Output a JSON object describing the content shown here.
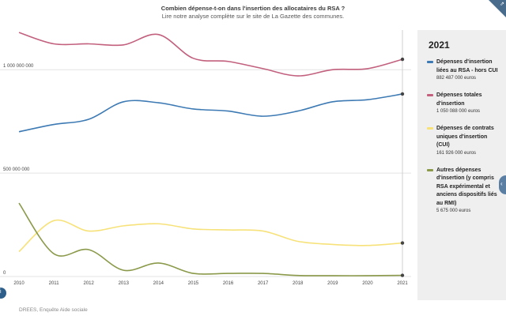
{
  "header": {
    "title": "Combien dépense-t-on dans l'insertion des allocataires du RSA ?",
    "subtitle": "Lire notre analyse complète sur le site de La Gazette des communes."
  },
  "icons": {
    "corner": "share-icon",
    "side_handle": "chevron-left-icon",
    "bottom": "info-icon"
  },
  "legend": {
    "year": "2021",
    "items": [
      {
        "name": "Dépenses d'insertion liées au RSA - hors CUI",
        "value": "882 487 000 euros",
        "color": "#3d7ab4"
      },
      {
        "name": "Dépenses totales d'insertion",
        "value": "1 050 088 000 euros",
        "color": "#c2607e"
      },
      {
        "name": "Dépenses de contrats uniques d'insertion (CUI)",
        "value": "161 926 000 euros",
        "color": "#f7e27a"
      },
      {
        "name": "Autres dépenses d'insertion (y compris RSA expérimental et anciens dispositifs liés au RMI)",
        "value": "5 675 000 euros",
        "color": "#8a9a4a"
      }
    ]
  },
  "source": "DREES, Enquête Aide sociale",
  "chart_data": {
    "type": "line",
    "x": [
      "2010",
      "2011",
      "2012",
      "2013",
      "2014",
      "2015",
      "2016",
      "2017",
      "2018",
      "2019",
      "2020",
      "2021"
    ],
    "y_ticks": [
      {
        "value": 0,
        "label": "0"
      },
      {
        "value": 500000000,
        "label": "500 000 000"
      },
      {
        "value": 1000000000,
        "label": "1 000 000 000"
      }
    ],
    "ylim": [
      0,
      1230000000
    ],
    "grid": true,
    "legend_position": "right",
    "series": [
      {
        "name": "Dépenses d'insertion liées au RSA - hors CUI",
        "color": "#3d7ab4",
        "values": [
          700000000,
          735000000,
          760000000,
          845000000,
          840000000,
          810000000,
          800000000,
          775000000,
          800000000,
          845000000,
          855000000,
          882487000
        ]
      },
      {
        "name": "Dépenses totales d'insertion",
        "color": "#c2607e",
        "values": [
          1180000000,
          1125000000,
          1125000000,
          1120000000,
          1170000000,
          1055000000,
          1040000000,
          1005000000,
          970000000,
          1000000000,
          1005000000,
          1050088000
        ]
      },
      {
        "name": "Dépenses de contrats uniques d'insertion (CUI)",
        "color": "#f7e27a",
        "values": [
          120000000,
          270000000,
          220000000,
          245000000,
          255000000,
          230000000,
          225000000,
          220000000,
          170000000,
          155000000,
          150000000,
          161926000
        ]
      },
      {
        "name": "Autres dépenses d'insertion (y compris RSA expérimental et anciens dispositifs liés au RMI)",
        "color": "#8a9a4a",
        "values": [
          355000000,
          110000000,
          130000000,
          30000000,
          65000000,
          15000000,
          15000000,
          15000000,
          5000000,
          4000000,
          4000000,
          5675000
        ]
      }
    ]
  }
}
